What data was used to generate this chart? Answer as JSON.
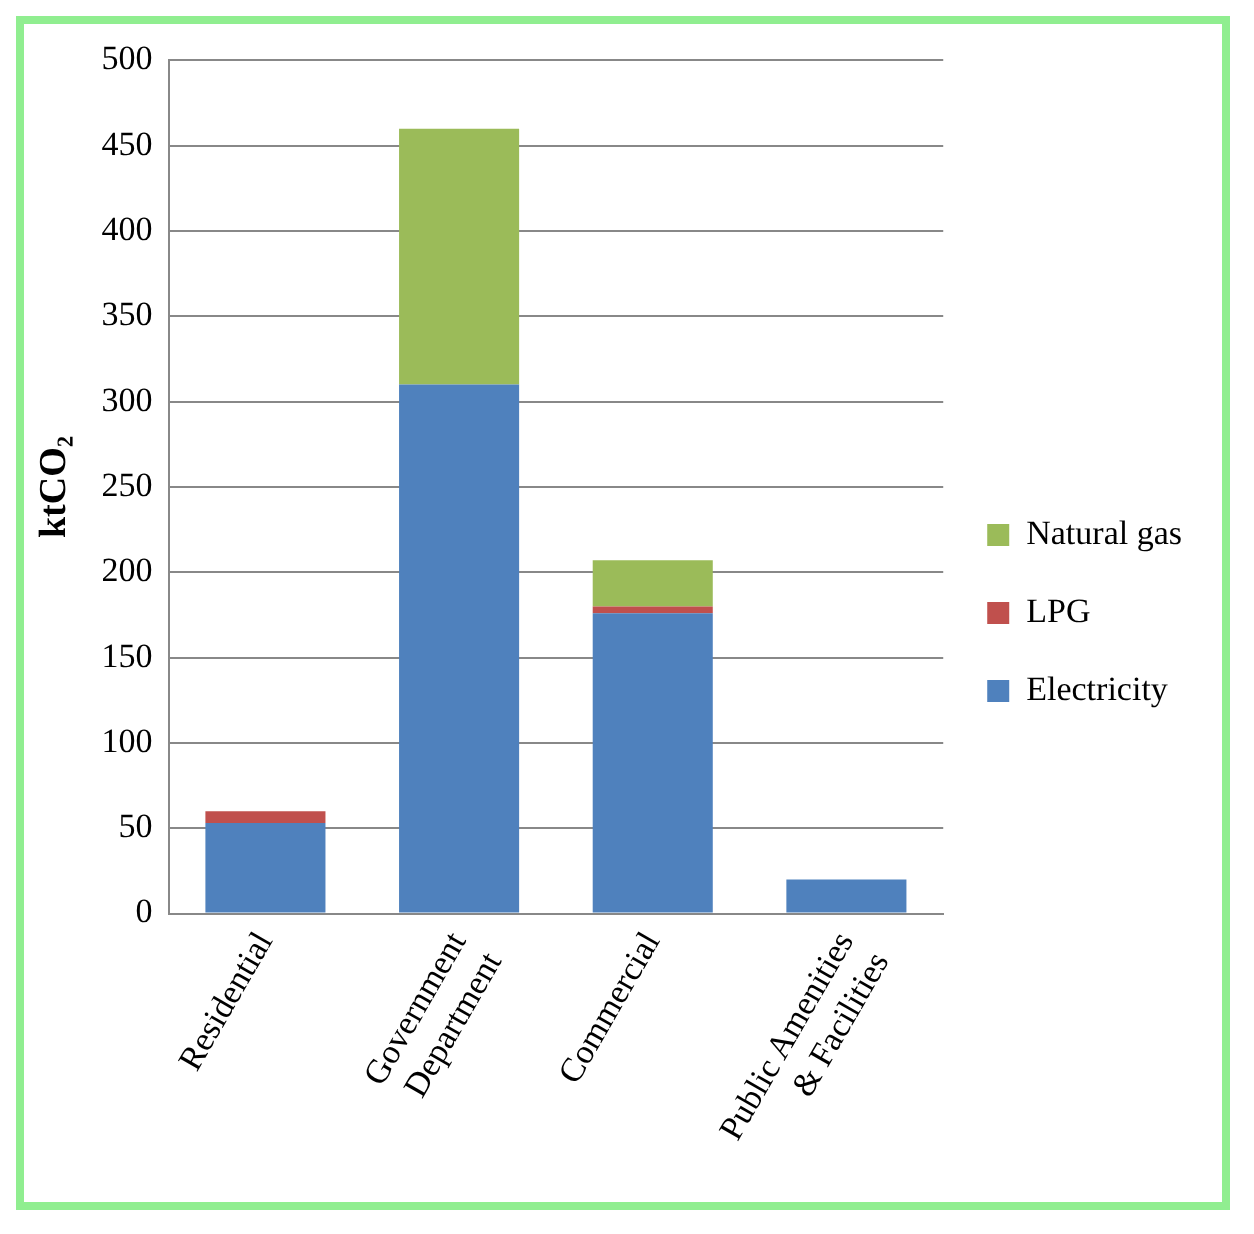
{
  "chart_data": {
    "type": "bar",
    "ylabel": "ktCO₂",
    "categories": [
      "Residential",
      "Government Department",
      "Commercial",
      "Public Amenities & Facilities"
    ],
    "series": [
      {
        "name": "Electricity",
        "color": "#4f81bd",
        "values": [
          53,
          310,
          176,
          20
        ]
      },
      {
        "name": "LPG",
        "color": "#c0504d",
        "values": [
          7,
          0,
          4,
          0
        ]
      },
      {
        "name": "Natural gas",
        "color": "#9bbb59",
        "values": [
          0,
          150,
          27,
          0
        ]
      }
    ],
    "stacked": true,
    "ylim": [
      0,
      500
    ],
    "yticks": [
      0,
      50,
      100,
      150,
      200,
      250,
      300,
      350,
      400,
      450,
      500
    ],
    "grid": "y",
    "legend": "right"
  }
}
